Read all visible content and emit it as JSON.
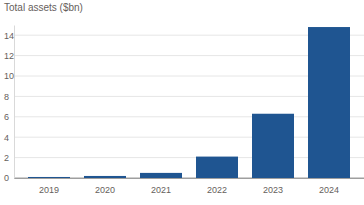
{
  "chart_data": {
    "type": "bar",
    "title": "Total assets ($bn)",
    "categories": [
      "2019",
      "2020",
      "2021",
      "2022",
      "2023",
      "2024"
    ],
    "values": [
      0.1,
      0.2,
      0.5,
      2.1,
      6.3,
      14.8
    ],
    "color": "#1f5591",
    "ylim": [
      0,
      15
    ],
    "yticks": [
      0,
      2,
      4,
      6,
      8,
      10,
      12,
      14
    ],
    "grid": true
  }
}
